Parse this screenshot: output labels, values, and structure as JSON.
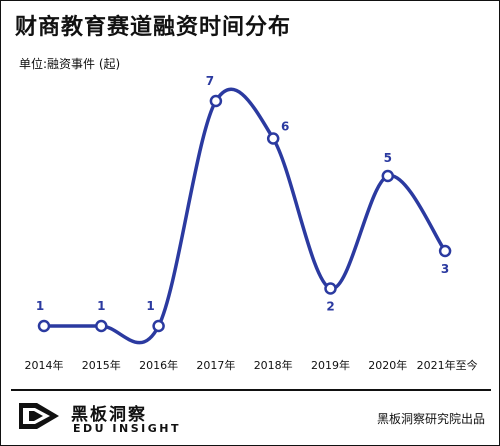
{
  "title": "财商教育赛道融资时间分布",
  "unit_label": "单位:融资事件 (起)",
  "chart_data": {
    "type": "line",
    "categories": [
      "2014年",
      "2015年",
      "2016年",
      "2017年",
      "2018年",
      "2019年",
      "2020年",
      "2021年至今"
    ],
    "values": [
      1,
      1,
      1,
      7,
      6,
      2,
      5,
      3
    ],
    "title": "财商教育赛道融资时间分布",
    "ylabel": "",
    "ylim": [
      0,
      8
    ],
    "smooth": true,
    "grid": false,
    "line_color": "#2b3aa0"
  },
  "brand": {
    "name_cn": "黑板洞察",
    "name_en": "EDU INSIGHT",
    "producer": "黑板洞察研究院出品"
  }
}
